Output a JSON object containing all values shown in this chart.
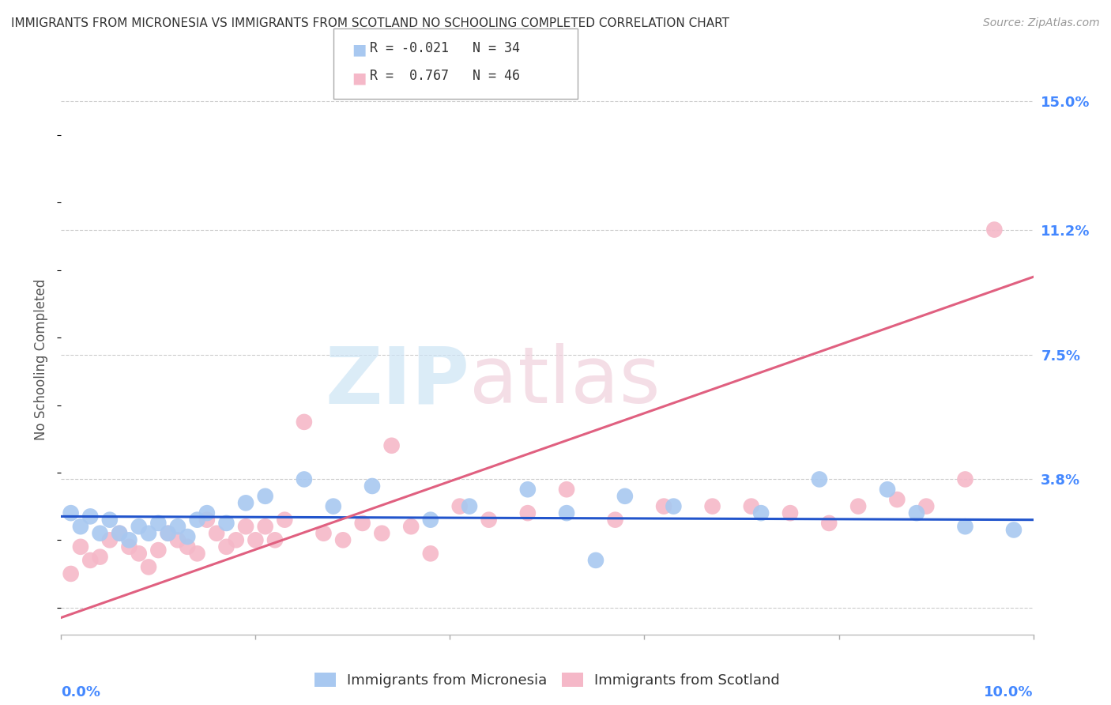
{
  "title": "IMMIGRANTS FROM MICRONESIA VS IMMIGRANTS FROM SCOTLAND NO SCHOOLING COMPLETED CORRELATION CHART",
  "source": "Source: ZipAtlas.com",
  "ylabel": "No Schooling Completed",
  "series1_label": "Immigrants from Micronesia",
  "series2_label": "Immigrants from Scotland",
  "series1_R": -0.021,
  "series1_N": 34,
  "series2_R": 0.767,
  "series2_N": 46,
  "series1_color": "#a8c8f0",
  "series2_color": "#f5b8c8",
  "series1_line_color": "#2255cc",
  "series2_line_color": "#e06080",
  "background_color": "#ffffff",
  "grid_color": "#cccccc",
  "xlim": [
    0.0,
    0.1
  ],
  "ylim": [
    -0.008,
    0.155
  ],
  "yticks": [
    0.0,
    0.038,
    0.075,
    0.112,
    0.15
  ],
  "ytick_labels": [
    "",
    "3.8%",
    "7.5%",
    "11.2%",
    "15.0%"
  ],
  "series1_x": [
    0.001,
    0.002,
    0.003,
    0.004,
    0.005,
    0.006,
    0.007,
    0.008,
    0.009,
    0.01,
    0.011,
    0.012,
    0.013,
    0.014,
    0.015,
    0.017,
    0.019,
    0.021,
    0.025,
    0.028,
    0.032,
    0.038,
    0.042,
    0.048,
    0.052,
    0.055,
    0.058,
    0.063,
    0.072,
    0.078,
    0.085,
    0.088,
    0.093,
    0.098
  ],
  "series1_y": [
    0.028,
    0.024,
    0.027,
    0.022,
    0.026,
    0.022,
    0.02,
    0.024,
    0.022,
    0.025,
    0.022,
    0.024,
    0.021,
    0.026,
    0.028,
    0.025,
    0.031,
    0.033,
    0.038,
    0.03,
    0.036,
    0.026,
    0.03,
    0.035,
    0.028,
    0.014,
    0.033,
    0.03,
    0.028,
    0.038,
    0.035,
    0.028,
    0.024,
    0.023
  ],
  "series2_x": [
    0.001,
    0.002,
    0.003,
    0.004,
    0.005,
    0.006,
    0.007,
    0.008,
    0.009,
    0.01,
    0.011,
    0.012,
    0.013,
    0.014,
    0.015,
    0.016,
    0.017,
    0.018,
    0.019,
    0.02,
    0.021,
    0.022,
    0.023,
    0.025,
    0.027,
    0.029,
    0.031,
    0.033,
    0.034,
    0.036,
    0.038,
    0.041,
    0.044,
    0.048,
    0.052,
    0.057,
    0.062,
    0.067,
    0.071,
    0.075,
    0.079,
    0.082,
    0.086,
    0.089,
    0.093,
    0.096
  ],
  "series2_y": [
    0.01,
    0.018,
    0.014,
    0.015,
    0.02,
    0.022,
    0.018,
    0.016,
    0.012,
    0.017,
    0.022,
    0.02,
    0.018,
    0.016,
    0.026,
    0.022,
    0.018,
    0.02,
    0.024,
    0.02,
    0.024,
    0.02,
    0.026,
    0.055,
    0.022,
    0.02,
    0.025,
    0.022,
    0.048,
    0.024,
    0.016,
    0.03,
    0.026,
    0.028,
    0.035,
    0.026,
    0.03,
    0.03,
    0.03,
    0.028,
    0.025,
    0.03,
    0.032,
    0.03,
    0.038,
    0.112
  ],
  "series1_line_y0": 0.027,
  "series1_line_y1": 0.026,
  "series2_line_y0": -0.003,
  "series2_line_y1": 0.098
}
